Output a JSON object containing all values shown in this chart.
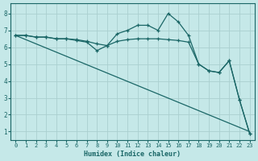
{
  "xlabel": "Humidex (Indice chaleur)",
  "background_color": "#c5e8e8",
  "grid_color": "#aacfcf",
  "line_color": "#1a6666",
  "xlim": [
    -0.5,
    23.5
  ],
  "ylim": [
    0.5,
    8.6
  ],
  "xticks": [
    0,
    1,
    2,
    3,
    4,
    5,
    6,
    7,
    8,
    9,
    10,
    11,
    12,
    13,
    14,
    15,
    16,
    17,
    18,
    19,
    20,
    21,
    22,
    23
  ],
  "yticks": [
    1,
    2,
    3,
    4,
    5,
    6,
    7,
    8
  ],
  "series": {
    "line_diagonal": {
      "x": [
        0,
        23
      ],
      "y": [
        6.7,
        1.0
      ]
    },
    "line_peak": {
      "x": [
        0,
        1,
        2,
        3,
        4,
        5,
        6,
        7,
        8,
        9,
        10,
        11,
        12,
        13,
        14,
        15,
        16,
        17,
        18,
        19,
        20,
        21,
        22,
        23
      ],
      "y": [
        6.7,
        6.7,
        6.6,
        6.6,
        6.5,
        6.5,
        6.4,
        6.3,
        5.8,
        6.1,
        6.8,
        7.0,
        7.3,
        7.3,
        7.0,
        8.0,
        7.5,
        6.7,
        5.0,
        4.6,
        4.5,
        5.2,
        2.9,
        0.9
      ]
    },
    "line_flat": {
      "x": [
        0,
        1,
        2,
        3,
        4,
        5,
        6,
        7,
        8,
        9,
        10,
        11,
        12,
        13,
        14,
        15,
        16,
        17,
        18,
        19,
        20,
        21,
        22,
        23
      ],
      "y": [
        6.7,
        6.7,
        6.6,
        6.6,
        6.5,
        6.5,
        6.45,
        6.35,
        6.2,
        6.1,
        6.35,
        6.45,
        6.5,
        6.5,
        6.5,
        6.45,
        6.4,
        6.3,
        5.0,
        4.6,
        4.5,
        5.2,
        2.9,
        0.9
      ]
    }
  }
}
